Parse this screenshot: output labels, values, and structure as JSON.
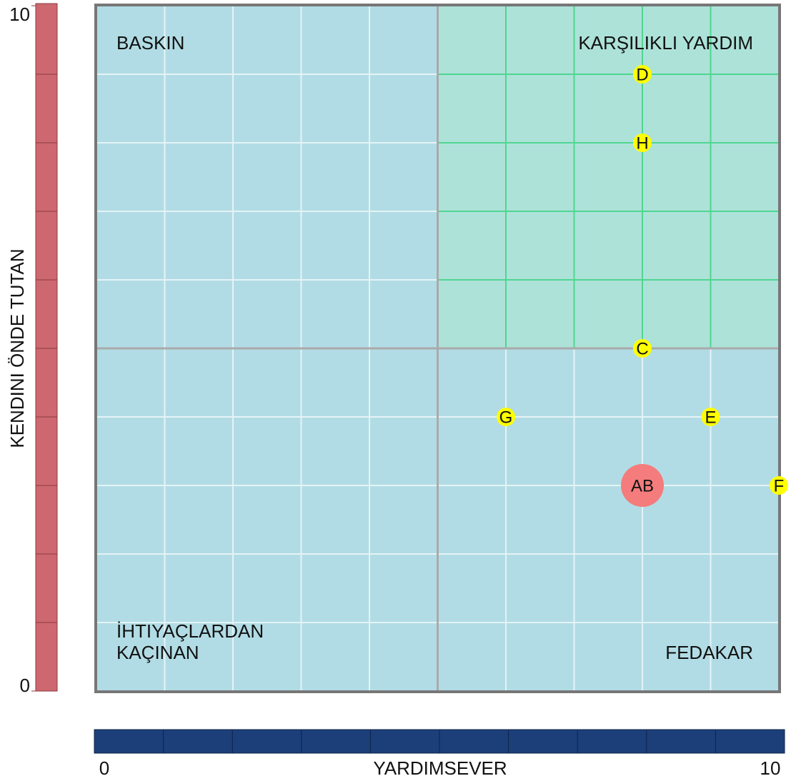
{
  "chart_data": {
    "type": "scatter",
    "xlabel": "YARDIMSEVER",
    "ylabel": "KENDINI ÖNDE TUTAN",
    "xlim": [
      0,
      10
    ],
    "ylim": [
      0,
      10
    ],
    "xticks": [
      0,
      10
    ],
    "yticks": [
      0,
      10
    ],
    "quadrant_labels": {
      "top_left": "BASKIN",
      "top_right": "KARŞILIKLI YARDIM",
      "bottom_left": [
        "İHTIYAÇLARDAN",
        "KAÇINAN"
      ],
      "bottom_right": "FEDAKAR"
    },
    "series": [
      {
        "labels": [
          "D",
          "H",
          "C",
          "G",
          "E",
          "F"
        ],
        "x": [
          8,
          8,
          8,
          6,
          9,
          10
        ],
        "values": [
          9,
          8,
          5,
          4,
          4,
          3
        ],
        "color": "#ffff00"
      },
      {
        "labels": [
          "AB"
        ],
        "x": [
          8
        ],
        "values": [
          3
        ],
        "color": "#f47c7c"
      }
    ]
  }
}
